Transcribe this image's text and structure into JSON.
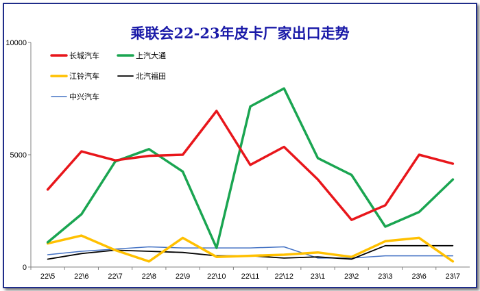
{
  "chart_data": {
    "type": "line",
    "title": "乘联会22-23年皮卡厂家出口走势",
    "xlabel": "",
    "ylabel": "",
    "categories": [
      "22\\5",
      "22\\6",
      "22\\7",
      "22\\8",
      "22\\9",
      "22\\10",
      "22\\11",
      "22\\12",
      "23\\1",
      "23\\2",
      "23\\3",
      "23\\6",
      "23\\7"
    ],
    "ylim": [
      0,
      10000
    ],
    "yticks": [
      "0",
      "5000",
      "10000"
    ],
    "grid": false,
    "legend_position": "top-left",
    "series": [
      {
        "name": "长城汽车",
        "color": "#e8161b",
        "width": 3.5,
        "values": [
          3450,
          5150,
          4750,
          4950,
          5000,
          6950,
          4550,
          5350,
          3900,
          2100,
          2750,
          5000,
          4600
        ]
      },
      {
        "name": "上汽大通",
        "color": "#1aa551",
        "width": 3.5,
        "values": [
          1100,
          2350,
          4700,
          5250,
          4250,
          850,
          7150,
          7950,
          4850,
          4100,
          1800,
          2450,
          3900
        ]
      },
      {
        "name": "江铃汽车",
        "color": "#ffc000",
        "width": 3.5,
        "values": [
          1050,
          1400,
          750,
          250,
          1300,
          450,
          500,
          550,
          650,
          450,
          1150,
          1300,
          250
        ]
      },
      {
        "name": "北汽福田",
        "color": "#000000",
        "width": 1.8,
        "values": [
          350,
          600,
          750,
          700,
          650,
          500,
          500,
          400,
          450,
          350,
          950,
          950,
          950
        ]
      },
      {
        "name": "中兴汽车",
        "color": "#4472c4",
        "width": 1.5,
        "values": [
          550,
          700,
          800,
          900,
          850,
          850,
          850,
          900,
          400,
          400,
          500,
          500,
          500
        ]
      }
    ]
  }
}
